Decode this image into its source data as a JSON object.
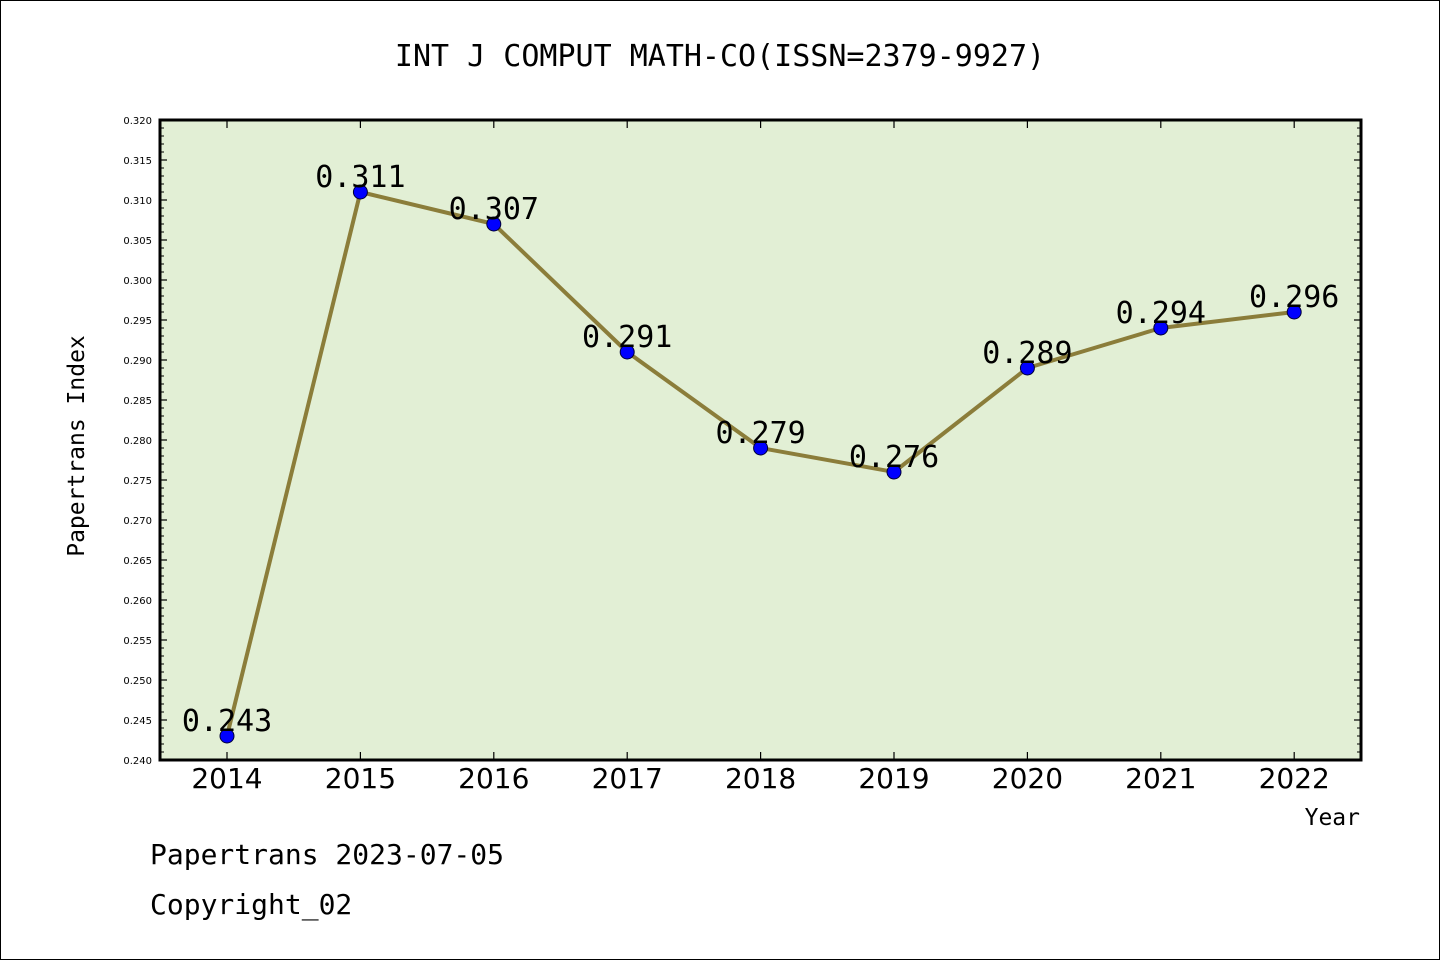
{
  "footer": {
    "line1": "Papertrans 2023-07-05",
    "line2": "Copyright_02"
  },
  "chart_data": {
    "type": "line",
    "title": "INT J COMPUT MATH-CO(ISSN=2379-9927)",
    "xlabel": "Year",
    "ylabel": "Papertrans Index",
    "categories": [
      "2014",
      "2015",
      "2016",
      "2017",
      "2018",
      "2019",
      "2020",
      "2021",
      "2022"
    ],
    "series": [
      {
        "values": [
          0.243,
          0.311,
          0.307,
          0.291,
          0.279,
          0.276,
          0.289,
          0.294,
          0.296
        ],
        "labels": [
          "0.243",
          "0.311",
          "0.307",
          "0.291",
          "0.279",
          "0.276",
          "0.289",
          "0.294",
          "0.296"
        ]
      }
    ],
    "ylim": [
      0.24,
      0.32
    ],
    "ytick_step": 0.005,
    "colors": {
      "plot_background": "#e2efd5",
      "line": "#8b7d3a",
      "marker": "#0000ff"
    }
  }
}
